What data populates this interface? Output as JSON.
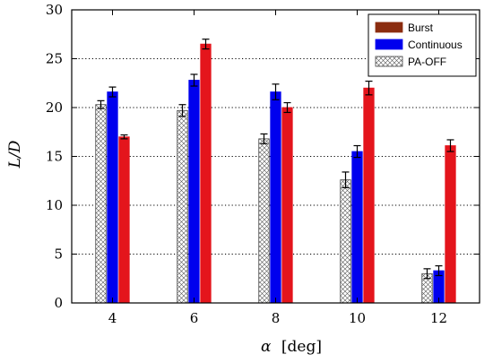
{
  "chart_data": {
    "type": "bar",
    "xlabel_symbol": "α",
    "xlabel_unit": "[deg]",
    "ylabel": "L/D",
    "categories": [
      "4",
      "6",
      "8",
      "10",
      "12"
    ],
    "ylim": [
      0,
      30
    ],
    "yticks": [
      0,
      5,
      10,
      15,
      20,
      25,
      30
    ],
    "grid": "horizontal-dotted",
    "legend_position": "top-right",
    "series": [
      {
        "name": "PA-OFF",
        "pattern": "crosshatch",
        "color": "#ffffff",
        "values": [
          20.3,
          19.7,
          16.8,
          12.6,
          3.0
        ],
        "errors": [
          0.4,
          0.6,
          0.5,
          0.8,
          0.5
        ]
      },
      {
        "name": "Continuous",
        "color": "#0000ee",
        "values": [
          21.6,
          22.8,
          21.6,
          15.5,
          3.3
        ],
        "errors": [
          0.5,
          0.6,
          0.8,
          0.6,
          0.5
        ]
      },
      {
        "name": "Burst",
        "color": "#e4151c",
        "legend_color": "#8b2c0f",
        "values": [
          17.0,
          26.5,
          20.0,
          22.0,
          16.1
        ],
        "errors": [
          0.2,
          0.5,
          0.5,
          0.7,
          0.6
        ]
      }
    ],
    "legend_order": [
      "Burst",
      "Continuous",
      "PA-OFF"
    ]
  }
}
